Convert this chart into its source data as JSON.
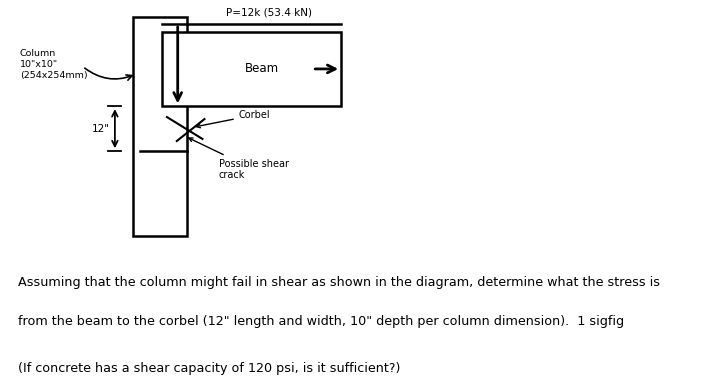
{
  "diagram_bg": "#d4cfc8",
  "line_color": "#000000",
  "title_label": "P=12k (53.4 kN)",
  "column_label": "Column\n10\"x10\"\n(254x254mm)",
  "beam_label": "Beam",
  "corbel_label": "Corbel",
  "shear_label": "Possible shear\ncrack",
  "dim_label": "12\"",
  "text1": "Assuming that the column might fail in shear as shown in the diagram, determine what the stress is",
  "text2": "from the beam to the corbel (12\" length and width, 10\" depth per column dimension).  1 sigfig",
  "text3": "(If concrete has a shear capacity of 120 psi, is it sufficient?)",
  "fig_width": 7.18,
  "fig_height": 3.89
}
